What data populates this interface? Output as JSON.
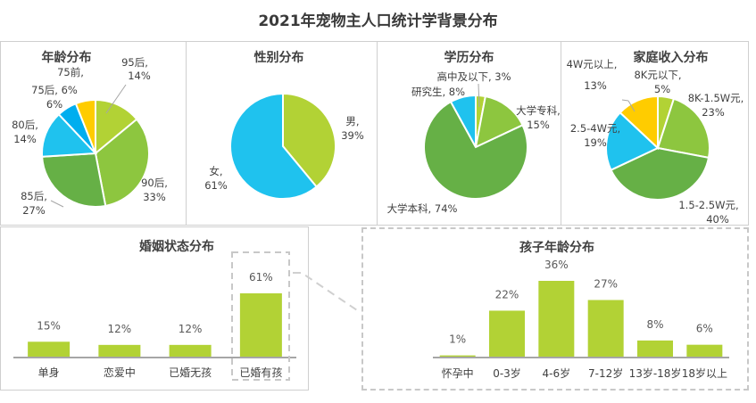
{
  "title": "2021年宠物主人口统计学背景分布",
  "colors": {
    "lime": "#b2d235",
    "light_green": "#8dc63f",
    "green": "#66b046",
    "sky": "#1fc2ee",
    "blue": "#00aeef",
    "yellow": "#ffcc00",
    "bar": "#b2d235",
    "axis": "#a6a6a6",
    "border": "#cfcfcf",
    "dash": "#c8c8c8"
  },
  "chart_data": [
    {
      "type": "pie",
      "title": "年龄分布",
      "slices": [
        {
          "label": "95后",
          "value": 14,
          "text": "95后,",
          "pct": "14%",
          "color": "#b2d235"
        },
        {
          "label": "90后",
          "value": 33,
          "text": "90后,",
          "pct": "33%",
          "color": "#8dc63f"
        },
        {
          "label": "85后",
          "value": 27,
          "text": "85后,",
          "pct": "27%",
          "color": "#66b046"
        },
        {
          "label": "80后",
          "value": 14,
          "text": "80后,",
          "pct": "14%",
          "color": "#1fc2ee"
        },
        {
          "label": "75后",
          "value": 6,
          "text": "75后, 6%",
          "pct": "",
          "color": "#00aeef"
        },
        {
          "label": "75前",
          "value": 6,
          "text": "75前,",
          "pct": "6%",
          "color": "#ffcc00"
        }
      ]
    },
    {
      "type": "pie",
      "title": "性别分布",
      "slices": [
        {
          "label": "男",
          "value": 39,
          "text": "男,",
          "pct": "39%",
          "color": "#b2d235"
        },
        {
          "label": "女",
          "value": 61,
          "text": "女,",
          "pct": "61%",
          "color": "#1fc2ee"
        }
      ]
    },
    {
      "type": "pie",
      "title": "学历分布",
      "slices": [
        {
          "label": "高中及以下",
          "value": 3,
          "text": "高中及以下, 3%",
          "pct": "",
          "color": "#b2d235"
        },
        {
          "label": "大学专科",
          "value": 15,
          "text": "大学专科,",
          "pct": "15%",
          "color": "#8dc63f"
        },
        {
          "label": "大学本科",
          "value": 74,
          "text": "大学本科, 74%",
          "pct": "",
          "color": "#66b046"
        },
        {
          "label": "研究生",
          "value": 8,
          "text": "研究生, 8%",
          "pct": "",
          "color": "#1fc2ee"
        }
      ]
    },
    {
      "type": "pie",
      "title": "家庭收入分布",
      "slices": [
        {
          "label": "8K元以下",
          "value": 5,
          "text": "8K元以下,",
          "pct": "5%",
          "color": "#b2d235"
        },
        {
          "label": "8K-1.5W元",
          "value": 23,
          "text": "8K-1.5W元,",
          "pct": "23%",
          "color": "#8dc63f"
        },
        {
          "label": "1.5-2.5W元",
          "value": 40,
          "text": "1.5-2.5W元,",
          "pct": "40%",
          "color": "#66b046"
        },
        {
          "label": "2.5-4W元",
          "value": 19,
          "text": "2.5-4W元,",
          "pct": "19%",
          "color": "#1fc2ee"
        },
        {
          "label": "4W元以上",
          "value": 13,
          "text": "4W元以上,",
          "pct": "13%",
          "color": "#ffcc00"
        }
      ]
    },
    {
      "type": "bar",
      "title": "婚姻状态分布",
      "categories": [
        "单身",
        "恋爱中",
        "已婚无孩",
        "已婚有孩"
      ],
      "values": [
        15,
        12,
        12,
        61
      ],
      "labels": [
        "15%",
        "12%",
        "12%",
        "61%"
      ],
      "ylim": [
        0,
        70
      ],
      "highlight": "已婚有孩"
    },
    {
      "type": "bar",
      "title": "孩子年龄分布",
      "categories": [
        "怀孕中",
        "0-3岁",
        "4-6岁",
        "7-12岁",
        "13岁-18岁",
        "18岁以上"
      ],
      "values": [
        1,
        22,
        36,
        27,
        8,
        6
      ],
      "labels": [
        "1%",
        "22%",
        "36%",
        "27%",
        "8%",
        "6%"
      ],
      "ylim": [
        0,
        40
      ]
    }
  ]
}
